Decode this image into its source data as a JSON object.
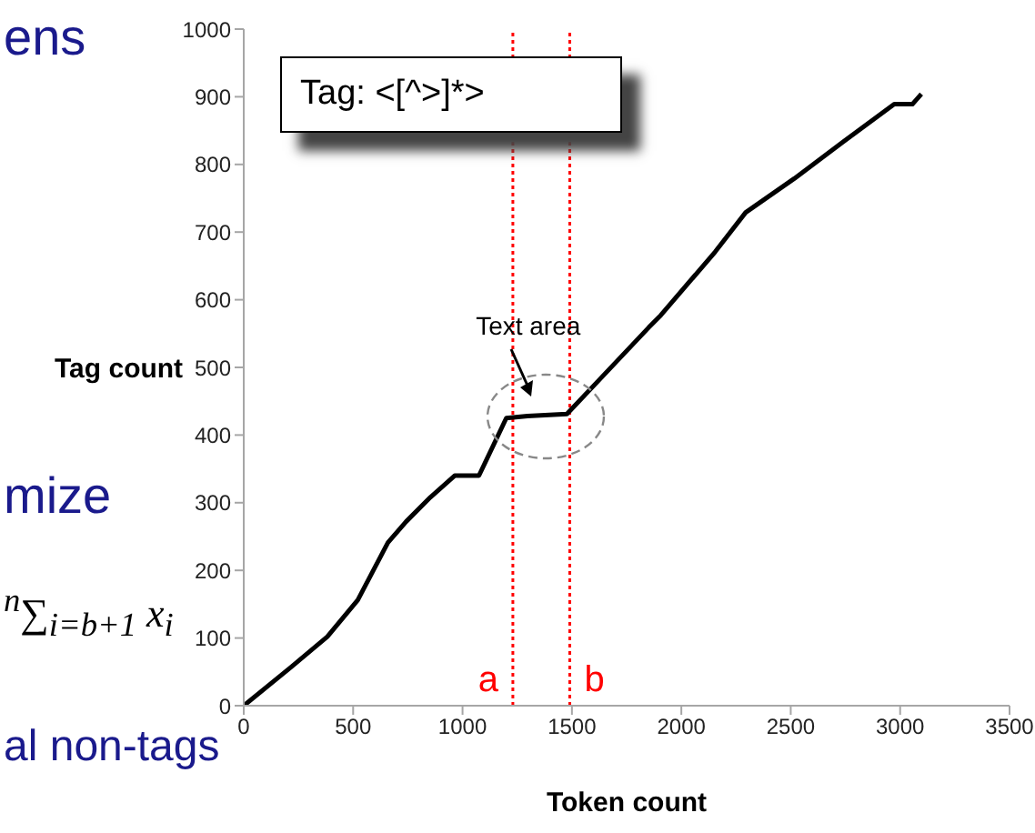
{
  "chart_data": {
    "type": "line",
    "xlabel": "Token count",
    "ylabel": "Tag count",
    "x": [
      0,
      216,
      382,
      521,
      659,
      742,
      853,
      964,
      1075,
      1200,
      1297,
      1477,
      1629,
      1851,
      1906,
      2155,
      2294,
      2516,
      2738,
      2973,
      3056,
      3097
    ],
    "series": [
      {
        "color": "#000000",
        "values": [
          0,
          57,
          102,
          156,
          241,
          272,
          308,
          340,
          340,
          425,
          428,
          431,
          483,
          559,
          577,
          671,
          729,
          779,
          833,
          889,
          889,
          904
        ]
      }
    ],
    "xlim": [
      0,
      3500
    ],
    "xticks": [
      0,
      500,
      1000,
      1500,
      2000,
      2500,
      3000,
      3500
    ],
    "ylim": [
      0,
      1000
    ],
    "yticks": [
      0,
      100,
      200,
      300,
      400,
      500,
      600,
      700,
      800,
      900,
      1000
    ],
    "grid": false,
    "legend": false,
    "marker": "none",
    "line_style": "solid",
    "ref_lines": [
      {
        "axis": "x",
        "value": 1230,
        "label": "a",
        "color": "#ff0000",
        "line_style": "dotted"
      },
      {
        "axis": "x",
        "value": 1490,
        "label": "b",
        "color": "#ff0000",
        "line_style": "dotted"
      }
    ],
    "annotations": [
      "ens",
      "mize",
      "$^{n}$∑$_{i=b+1}$ x$_{i}$",
      "al non-tags",
      {
        "text": "Text area",
        "x": 1300,
        "y": 430
      },
      "Tag: <[^>]*>"
    ]
  }
}
